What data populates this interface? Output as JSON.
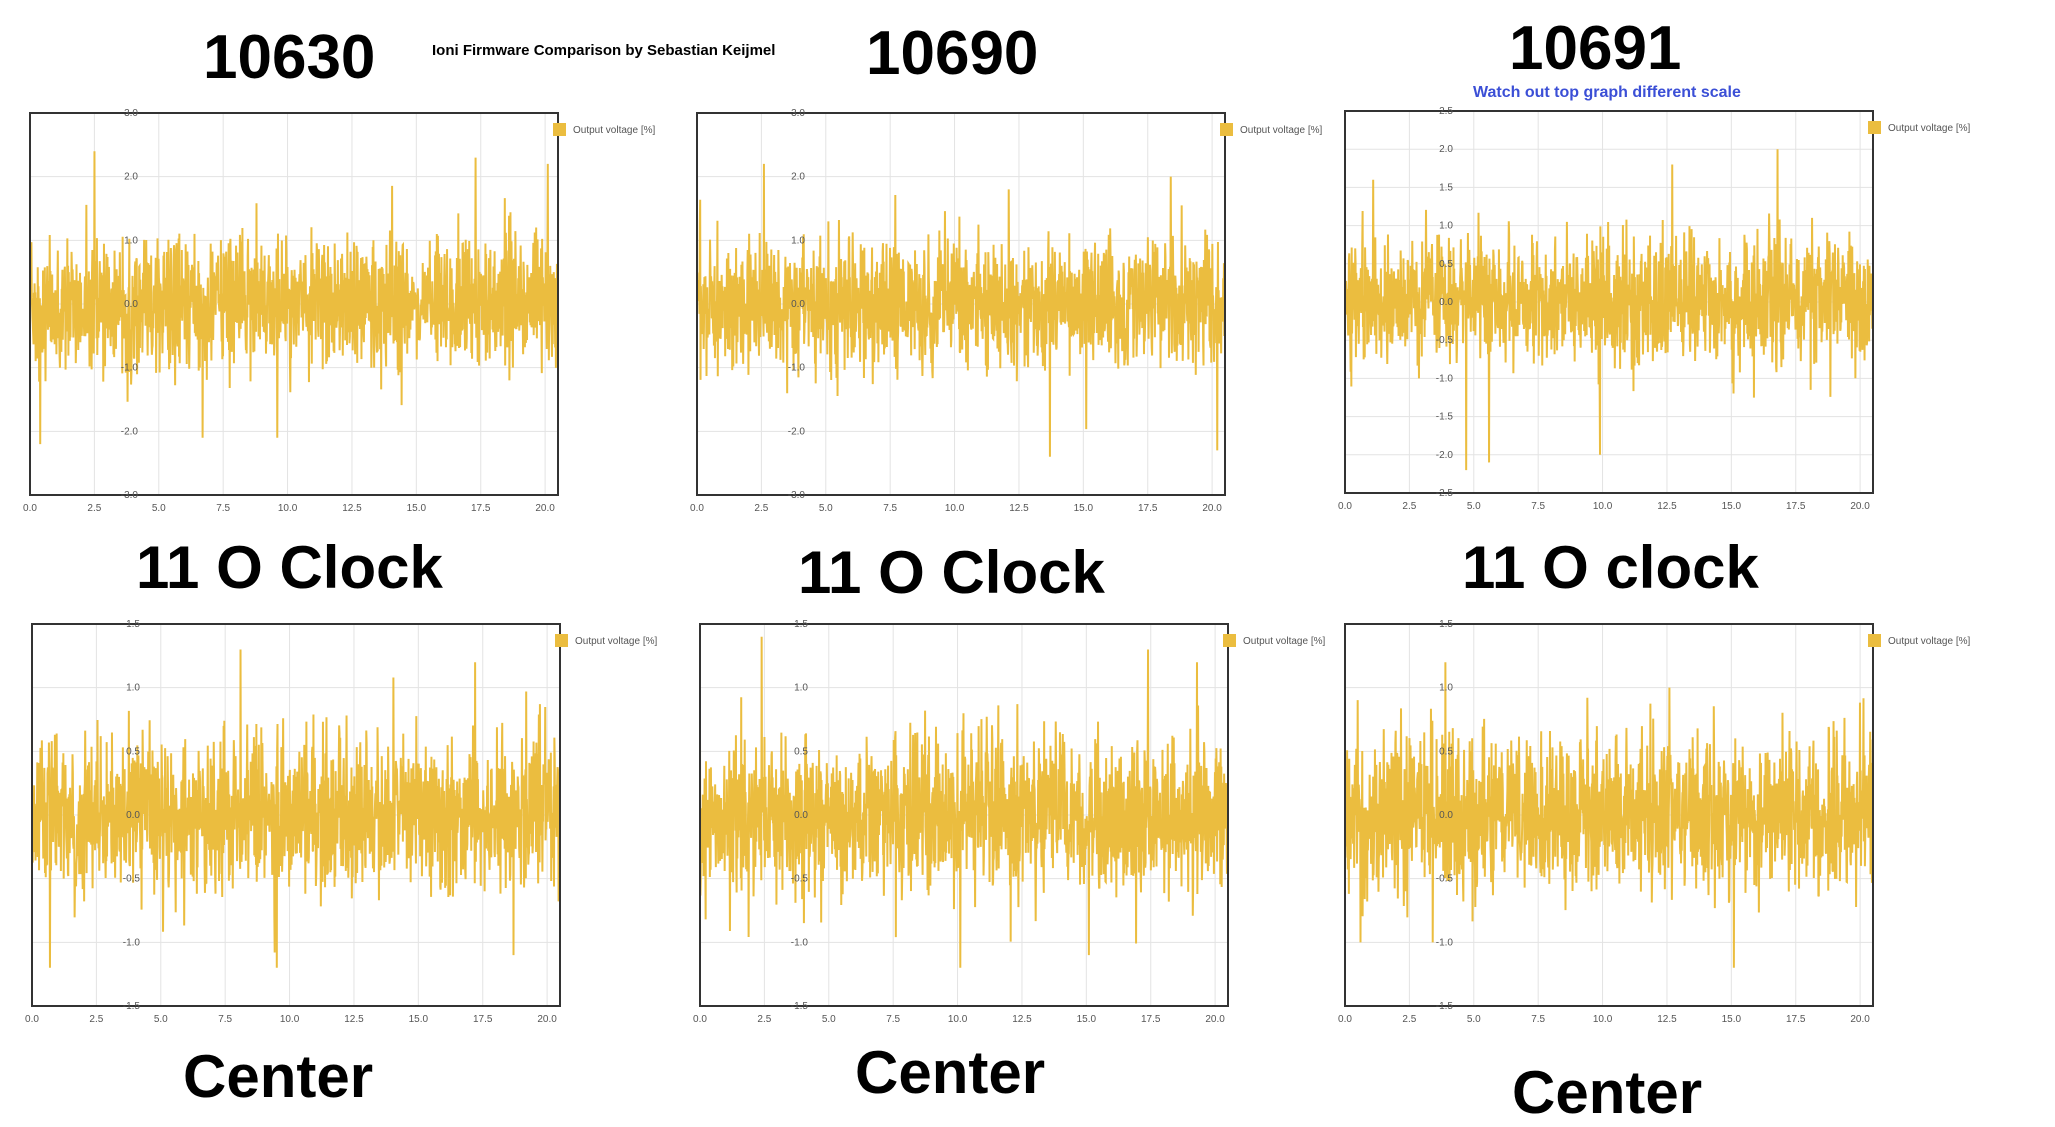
{
  "header": {
    "main_title": "Ioni Firmware Comparison by Sebastian Keijmel",
    "note": "Watch out top graph different scale"
  },
  "columns": [
    {
      "firmware": "10630",
      "top_label": "11 O Clock",
      "bottom_label": "Center"
    },
    {
      "firmware": "10690",
      "top_label": "11 O Clock",
      "bottom_label": "Center"
    },
    {
      "firmware": "10691",
      "top_label": "11 O clock",
      "bottom_label": "Center"
    }
  ],
  "colors": {
    "series": "#ebbd3f",
    "grid": "#e3e3e3",
    "axis": "#333333"
  },
  "chart_data": [
    {
      "id": "c10630-top",
      "type": "line",
      "title": "",
      "xlabel": "",
      "ylabel": "",
      "legend": "top-right",
      "series": [
        {
          "name": "Output voltage [%]",
          "amplitude": 0.9,
          "count": 1500,
          "peaks": [
            [
              2.5,
              2.4
            ],
            [
              17.3,
              2.3
            ],
            [
              20.1,
              2.2
            ],
            [
              9.6,
              -2.1
            ],
            [
              6.7,
              -2.1
            ],
            [
              0.4,
              -2.2
            ]
          ]
        }
      ],
      "xlim": [
        0,
        20.5
      ],
      "ylim": [
        -3.0,
        3.0
      ],
      "xticks": [
        0,
        2.5,
        5.0,
        7.5,
        10.0,
        12.5,
        15.0,
        17.5,
        20.0
      ],
      "yticks": [
        -3.0,
        -2.0,
        -1.0,
        0.0,
        1.0,
        2.0,
        3.0
      ],
      "xtick_labels": [
        "0.0",
        "2.5",
        "5.0",
        "7.5",
        "10.0",
        "12.5",
        "15.0",
        "17.5",
        "20.0"
      ],
      "ytick_labels": [
        "-3.0",
        "-2.0",
        "-1.0",
        "0.0",
        "1.0",
        "2.0",
        "3.0"
      ]
    },
    {
      "id": "c10690-top",
      "type": "line",
      "title": "",
      "xlabel": "",
      "ylabel": "",
      "legend": "top-right",
      "series": [
        {
          "name": "Output voltage [%]",
          "amplitude": 0.9,
          "count": 1500,
          "peaks": [
            [
              2.6,
              2.2
            ],
            [
              12.1,
              1.8
            ],
            [
              18.4,
              2.0
            ],
            [
              13.7,
              -2.4
            ],
            [
              20.2,
              -2.3
            ]
          ]
        }
      ],
      "xlim": [
        0,
        20.5
      ],
      "ylim": [
        -3.0,
        3.0
      ],
      "xticks": [
        0,
        2.5,
        5.0,
        7.5,
        10.0,
        12.5,
        15.0,
        17.5,
        20.0
      ],
      "yticks": [
        -3.0,
        -2.0,
        -1.0,
        0.0,
        1.0,
        2.0,
        3.0
      ],
      "xtick_labels": [
        "0.0",
        "2.5",
        "5.0",
        "7.5",
        "10.0",
        "12.5",
        "15.0",
        "17.5",
        "20.0"
      ],
      "ytick_labels": [
        "-3.0",
        "-2.0",
        "-1.0",
        "0.0",
        "1.0",
        "2.0",
        "3.0"
      ]
    },
    {
      "id": "c10691-top",
      "type": "line",
      "title": "",
      "xlabel": "",
      "ylabel": "",
      "legend": "top-right",
      "series": [
        {
          "name": "Output voltage [%]",
          "amplitude": 0.75,
          "count": 1500,
          "peaks": [
            [
              16.8,
              2.0
            ],
            [
              12.7,
              1.8
            ],
            [
              1.1,
              1.6
            ],
            [
              4.7,
              -2.2
            ],
            [
              5.6,
              -2.1
            ],
            [
              9.9,
              -2.0
            ]
          ]
        }
      ],
      "xlim": [
        0,
        20.5
      ],
      "ylim": [
        -2.5,
        2.5
      ],
      "xticks": [
        0,
        2.5,
        5.0,
        7.5,
        10.0,
        12.5,
        15.0,
        17.5,
        20.0
      ],
      "yticks": [
        -2.5,
        -2.0,
        -1.5,
        -1.0,
        -0.5,
        0.0,
        0.5,
        1.0,
        1.5,
        2.0,
        2.5
      ],
      "xtick_labels": [
        "0.0",
        "2.5",
        "5.0",
        "7.5",
        "10.0",
        "12.5",
        "15.0",
        "17.5",
        "20.0"
      ],
      "ytick_labels": [
        "-2.5",
        "-2.0",
        "-1.5",
        "-1.0",
        "-0.5",
        "0.0",
        "0.5",
        "1.0",
        "1.5",
        "2.0",
        "2.5"
      ]
    },
    {
      "id": "c10630-bottom",
      "type": "line",
      "title": "",
      "xlabel": "",
      "ylabel": "",
      "legend": "top-right",
      "series": [
        {
          "name": "Output voltage [%]",
          "amplitude": 0.55,
          "count": 1500,
          "peaks": [
            [
              17.2,
              1.2
            ],
            [
              8.1,
              1.3
            ],
            [
              9.5,
              -1.2
            ],
            [
              18.7,
              -1.1
            ],
            [
              0.7,
              -1.2
            ]
          ]
        }
      ],
      "xlim": [
        0,
        20.5
      ],
      "ylim": [
        -1.5,
        1.5
      ],
      "xticks": [
        0,
        2.5,
        5.0,
        7.5,
        10.0,
        12.5,
        15.0,
        17.5,
        20.0
      ],
      "yticks": [
        -1.5,
        -1.0,
        -0.5,
        0.0,
        0.5,
        1.0,
        1.5
      ],
      "xtick_labels": [
        "0.0",
        "2.5",
        "5.0",
        "7.5",
        "10.0",
        "12.5",
        "15.0",
        "17.5",
        "20.0"
      ],
      "ytick_labels": [
        "-1.5",
        "-1.0",
        "-0.5",
        "0.0",
        "0.5",
        "1.0",
        "1.5"
      ]
    },
    {
      "id": "c10690-bottom",
      "type": "line",
      "title": "",
      "xlabel": "",
      "ylabel": "",
      "legend": "top-right",
      "series": [
        {
          "name": "Output voltage [%]",
          "amplitude": 0.55,
          "count": 1500,
          "peaks": [
            [
              2.4,
              1.4
            ],
            [
              17.4,
              1.3
            ],
            [
              19.3,
              1.2
            ],
            [
              10.1,
              -1.2
            ],
            [
              15.1,
              -1.1
            ]
          ]
        }
      ],
      "xlim": [
        0,
        20.5
      ],
      "ylim": [
        -1.5,
        1.5
      ],
      "xticks": [
        0,
        2.5,
        5.0,
        7.5,
        10.0,
        12.5,
        15.0,
        17.5,
        20.0
      ],
      "yticks": [
        -1.5,
        -1.0,
        -0.5,
        0.0,
        0.5,
        1.0,
        1.5
      ],
      "xtick_labels": [
        "0.0",
        "2.5",
        "5.0",
        "7.5",
        "10.0",
        "12.5",
        "15.0",
        "17.5",
        "20.0"
      ],
      "ytick_labels": [
        "-1.5",
        "-1.0",
        "-0.5",
        "0.0",
        "0.5",
        "1.0",
        "1.5"
      ]
    },
    {
      "id": "c10691-bottom",
      "type": "line",
      "title": "",
      "xlabel": "",
      "ylabel": "",
      "legend": "top-right",
      "series": [
        {
          "name": "Output voltage [%]",
          "amplitude": 0.55,
          "count": 1500,
          "peaks": [
            [
              3.9,
              1.2
            ],
            [
              12.6,
              1.0
            ],
            [
              15.1,
              -1.2
            ],
            [
              0.6,
              -1.0
            ],
            [
              3.4,
              -1.0
            ]
          ]
        }
      ],
      "xlim": [
        0,
        20.5
      ],
      "ylim": [
        -1.5,
        1.5
      ],
      "xticks": [
        0,
        2.5,
        5.0,
        7.5,
        10.0,
        12.5,
        15.0,
        17.5,
        20.0
      ],
      "yticks": [
        -1.5,
        -1.0,
        -0.5,
        0.0,
        0.5,
        1.0,
        1.5
      ],
      "xtick_labels": [
        "0.0",
        "2.5",
        "5.0",
        "7.5",
        "10.0",
        "12.5",
        "15.0",
        "17.5",
        "20.0"
      ],
      "ytick_labels": [
        "-1.5",
        "-1.0",
        "-0.5",
        "0.0",
        "0.5",
        "1.0",
        "1.5"
      ]
    }
  ]
}
